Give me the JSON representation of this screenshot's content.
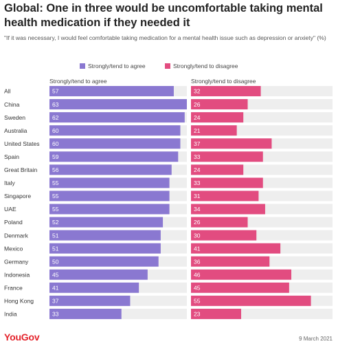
{
  "header": {
    "title": "Global: One in three would be uncomfortable taking mental health medication if they needed it",
    "subtitle": "\"If it was necessary, I would feel comfortable taking medication for a mental health issue such as depression or anxiety\" (%)"
  },
  "footer": {
    "brand": "YouGov",
    "date": "9 March 2021"
  },
  "chart_data": {
    "type": "bar",
    "orientation": "horizontal",
    "title": "Global: One in three would be uncomfortable taking mental health medication if they needed it",
    "subtitle": "\"If it was necessary, I would feel comfortable taking medication for a mental health issue such as depression or anxiety\" (%)",
    "legend_position": "top",
    "categories": [
      "All",
      "China",
      "Sweden",
      "Australia",
      "United States",
      "Spain",
      "Great Britain",
      "Italy",
      "Singapore",
      "UAE",
      "Poland",
      "Denmark",
      "Mexico",
      "Germany",
      "Indonesia",
      "France",
      "Hong Kong",
      "India"
    ],
    "xlim": [
      0,
      63
    ],
    "series": [
      {
        "name": "Strongly/tend to agree",
        "color": "#8a78d1",
        "values": [
          57,
          63,
          62,
          60,
          60,
          59,
          56,
          55,
          55,
          55,
          52,
          51,
          51,
          50,
          45,
          41,
          37,
          33
        ]
      },
      {
        "name": "Strongly/tend to disagree",
        "color": "#e24c80",
        "values": [
          32,
          26,
          24,
          21,
          37,
          33,
          24,
          33,
          31,
          34,
          26,
          30,
          41,
          36,
          46,
          45,
          55,
          23
        ]
      }
    ],
    "track_color": "#eeeeee"
  }
}
